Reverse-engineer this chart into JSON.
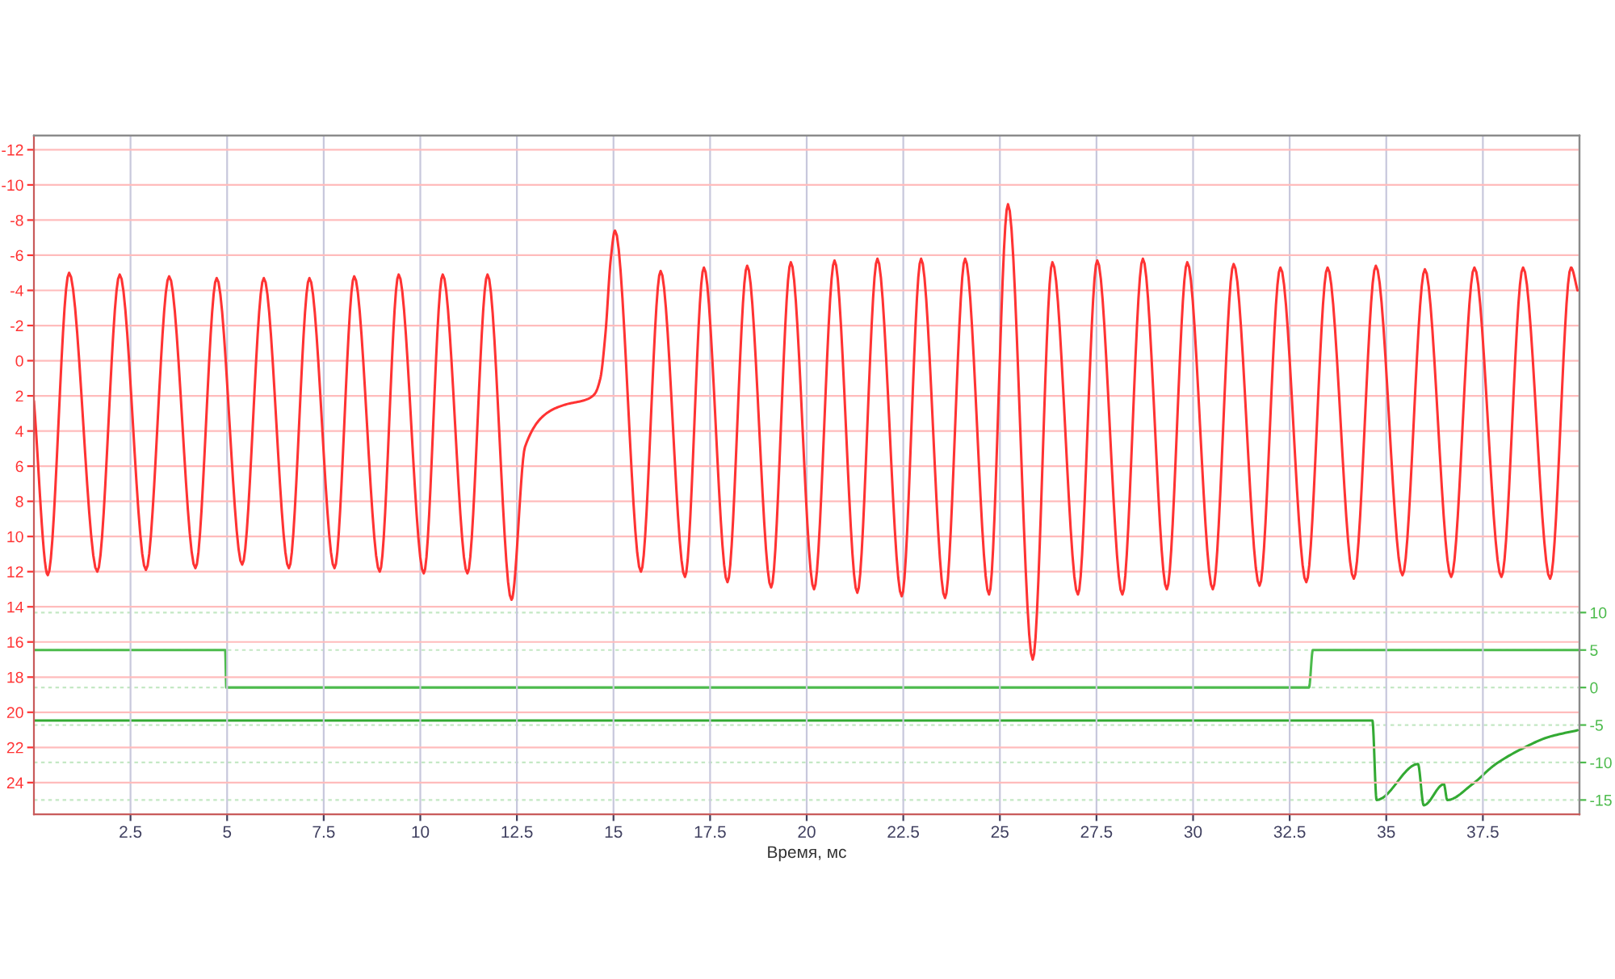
{
  "chart_data": {
    "type": "line",
    "xlabel": "Время, мс",
    "xlim": [
      0,
      40
    ],
    "xticks": [
      2.5,
      5,
      7.5,
      10,
      12.5,
      15,
      17.5,
      20,
      22.5,
      25,
      27.5,
      30,
      32.5,
      35,
      37.5
    ],
    "ylim": [
      25.8,
      -12.8
    ],
    "yticks": [
      -12,
      -10,
      -8,
      -6,
      -4,
      -2,
      0,
      2,
      4,
      6,
      8,
      10,
      12,
      14,
      16,
      18,
      20,
      22,
      24
    ],
    "y2lim": [
      -16.9,
      73.6
    ],
    "y2ticks": [
      -15,
      -10,
      -5,
      0,
      5,
      10
    ],
    "grid": true,
    "series": [
      {
        "color": "#ff3333",
        "x": [
          0,
          0.36,
          0.91,
          1.64,
          2.22,
          2.9,
          3.5,
          4.18,
          4.73,
          5.39,
          5.95,
          6.6,
          7.13,
          7.78,
          8.29,
          8.95,
          9.44,
          10.09,
          10.58,
          11.22,
          11.74,
          12.36,
          12.71,
          13.33,
          13.75,
          14.31,
          14.51,
          14.66,
          14.79,
          14.93,
          15.04,
          15.71,
          16.22,
          16.85,
          17.34,
          17.95,
          18.46,
          19.08,
          19.59,
          20.19,
          20.72,
          21.31,
          21.83,
          22.46,
          22.96,
          23.58,
          24.1,
          24.72,
          25.21,
          25.85,
          26.36,
          27.02,
          27.52,
          28.17,
          28.7,
          29.32,
          29.85,
          30.51,
          31.05,
          31.72,
          32.26,
          32.93,
          33.48,
          34.16,
          34.73,
          35.42,
          36.0,
          36.68,
          37.28,
          37.98,
          38.54,
          39.24,
          39.78,
          39.95
        ],
        "values": [
          2.3,
          12.2,
          -5.0,
          12.0,
          -4.9,
          11.9,
          -4.8,
          11.8,
          -4.7,
          11.6,
          -4.7,
          11.8,
          -4.7,
          11.8,
          -4.8,
          12.0,
          -4.9,
          12.1,
          -4.9,
          12.1,
          -4.9,
          13.6,
          4.9,
          2.9,
          2.5,
          2.2,
          1.9,
          1.0,
          -1.5,
          -5.8,
          -7.4,
          12.0,
          -5.1,
          12.3,
          -5.3,
          12.6,
          -5.4,
          12.9,
          -5.6,
          13.0,
          -5.7,
          13.2,
          -5.8,
          13.4,
          -5.8,
          13.5,
          -5.8,
          13.3,
          -8.9,
          17.0,
          -5.6,
          13.3,
          -5.7,
          13.3,
          -5.8,
          13.0,
          -5.6,
          13.0,
          -5.5,
          12.8,
          -5.3,
          12.6,
          -5.3,
          12.4,
          -5.4,
          12.2,
          -5.2,
          12.3,
          -5.3,
          12.3,
          -5.3,
          12.4,
          -5.3,
          -4.0
        ]
      },
      {
        "color": "#4cbb4c",
        "axis": "y2",
        "x": [
          0,
          4.95,
          4.98,
          33.0,
          33.1,
          40
        ],
        "values": [
          5,
          5,
          0,
          0,
          5,
          5
        ]
      },
      {
        "color": "#33aa33",
        "axis": "y2",
        "x": [
          0,
          34.64,
          34.75,
          35.82,
          35.97,
          36.49,
          36.58,
          37.25,
          37.81,
          38.5,
          39.2,
          39.95
        ],
        "values": [
          -4.4,
          -4.4,
          -15,
          -10.2,
          -15.7,
          -12.9,
          -15,
          -12.8,
          -10.3,
          -8.2,
          -6.6,
          -5.7
        ]
      }
    ]
  }
}
